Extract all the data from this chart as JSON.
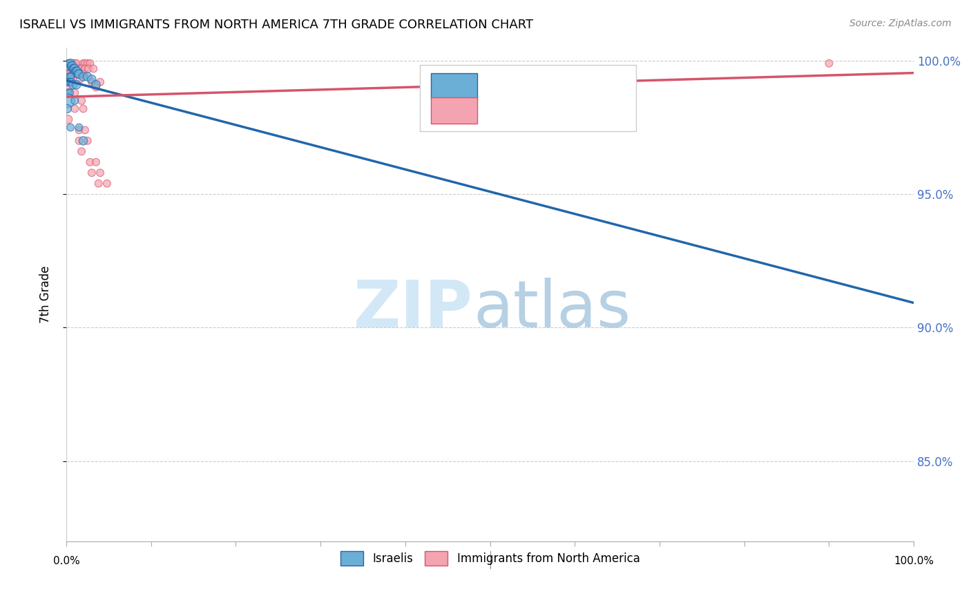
{
  "title": "ISRAELI VS IMMIGRANTS FROM NORTH AMERICA 7TH GRADE CORRELATION CHART",
  "source": "Source: ZipAtlas.com",
  "ylabel": "7th Grade",
  "xlim": [
    0.0,
    1.0
  ],
  "ylim": [
    0.82,
    1.005
  ],
  "yticks": [
    0.85,
    0.9,
    0.95,
    1.0
  ],
  "ytick_labels": [
    "85.0%",
    "90.0%",
    "95.0%",
    "100.0%"
  ],
  "blue_color": "#6baed6",
  "pink_color": "#f4a4b0",
  "blue_line_color": "#2166ac",
  "pink_line_color": "#d6546b",
  "blue_scatter": [
    [
      0.0025,
      0.998
    ],
    [
      0.003,
      0.999
    ],
    [
      0.004,
      0.999
    ],
    [
      0.005,
      0.999
    ],
    [
      0.006,
      0.998
    ],
    [
      0.007,
      0.998
    ],
    [
      0.008,
      0.997
    ],
    [
      0.009,
      0.997
    ],
    [
      0.01,
      0.997
    ],
    [
      0.011,
      0.996
    ],
    [
      0.012,
      0.996
    ],
    [
      0.013,
      0.996
    ],
    [
      0.014,
      0.995
    ],
    [
      0.015,
      0.995
    ],
    [
      0.003,
      0.994
    ],
    [
      0.004,
      0.994
    ],
    [
      0.005,
      0.994
    ],
    [
      0.02,
      0.994
    ],
    [
      0.025,
      0.994
    ],
    [
      0.03,
      0.993
    ],
    [
      0.002,
      0.992
    ],
    [
      0.003,
      0.992
    ],
    [
      0.004,
      0.992
    ],
    [
      0.006,
      0.992
    ],
    [
      0.008,
      0.991
    ],
    [
      0.012,
      0.991
    ],
    [
      0.035,
      0.991
    ],
    [
      0.002,
      0.988
    ],
    [
      0.004,
      0.988
    ],
    [
      0.002,
      0.985
    ],
    [
      0.01,
      0.985
    ],
    [
      0.001,
      0.982
    ],
    [
      0.005,
      0.975
    ],
    [
      0.015,
      0.975
    ],
    [
      0.02,
      0.97
    ]
  ],
  "pink_scatter": [
    [
      0.002,
      0.999
    ],
    [
      0.008,
      0.999
    ],
    [
      0.01,
      0.999
    ],
    [
      0.012,
      0.999
    ],
    [
      0.02,
      0.999
    ],
    [
      0.022,
      0.999
    ],
    [
      0.025,
      0.999
    ],
    [
      0.028,
      0.999
    ],
    [
      0.9,
      0.999
    ],
    [
      0.003,
      0.997
    ],
    [
      0.005,
      0.997
    ],
    [
      0.007,
      0.997
    ],
    [
      0.009,
      0.997
    ],
    [
      0.015,
      0.997
    ],
    [
      0.018,
      0.997
    ],
    [
      0.022,
      0.997
    ],
    [
      0.026,
      0.997
    ],
    [
      0.032,
      0.997
    ],
    [
      0.004,
      0.995
    ],
    [
      0.008,
      0.995
    ],
    [
      0.014,
      0.995
    ],
    [
      0.02,
      0.995
    ],
    [
      0.002,
      0.993
    ],
    [
      0.006,
      0.993
    ],
    [
      0.016,
      0.993
    ],
    [
      0.03,
      0.992
    ],
    [
      0.04,
      0.992
    ],
    [
      0.003,
      0.99
    ],
    [
      0.035,
      0.99
    ],
    [
      0.004,
      0.988
    ],
    [
      0.01,
      0.988
    ],
    [
      0.018,
      0.985
    ],
    [
      0.01,
      0.982
    ],
    [
      0.02,
      0.982
    ],
    [
      0.002,
      0.978
    ],
    [
      0.015,
      0.974
    ],
    [
      0.022,
      0.974
    ],
    [
      0.015,
      0.97
    ],
    [
      0.025,
      0.97
    ],
    [
      0.018,
      0.966
    ],
    [
      0.028,
      0.962
    ],
    [
      0.035,
      0.962
    ],
    [
      0.03,
      0.958
    ],
    [
      0.04,
      0.958
    ],
    [
      0.038,
      0.954
    ],
    [
      0.048,
      0.954
    ]
  ],
  "blue_marker_sizes": [
    80,
    60,
    60,
    80,
    80,
    80,
    80,
    80,
    80,
    80,
    80,
    80,
    80,
    80,
    60,
    60,
    60,
    80,
    80,
    80,
    60,
    60,
    60,
    60,
    80,
    80,
    80,
    60,
    60,
    200,
    60,
    80,
    60,
    60,
    80
  ],
  "pink_marker_sizes": [
    60,
    60,
    60,
    60,
    60,
    60,
    60,
    60,
    60,
    60,
    60,
    60,
    60,
    60,
    60,
    60,
    60,
    60,
    60,
    60,
    60,
    60,
    60,
    60,
    60,
    60,
    60,
    60,
    60,
    60,
    60,
    60,
    60,
    60,
    80,
    60,
    60,
    60,
    60,
    60,
    60,
    60,
    60,
    60,
    60,
    60
  ]
}
